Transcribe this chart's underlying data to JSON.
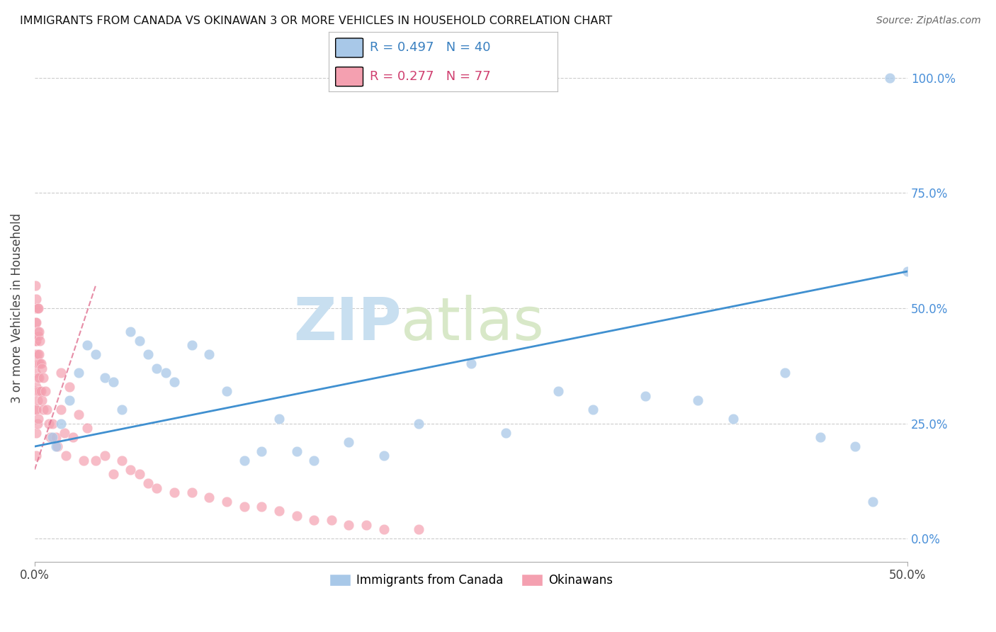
{
  "title": "IMMIGRANTS FROM CANADA VS OKINAWAN 3 OR MORE VEHICLES IN HOUSEHOLD CORRELATION CHART",
  "source": "Source: ZipAtlas.com",
  "ylabel": "3 or more Vehicles in Household",
  "ytick_values": [
    0,
    25,
    50,
    75,
    100
  ],
  "xlim": [
    0,
    50
  ],
  "ylim": [
    -5,
    105
  ],
  "legend_blue_r": "R = 0.497",
  "legend_blue_n": "N = 40",
  "legend_pink_r": "R = 0.277",
  "legend_pink_n": "N = 77",
  "blue_color": "#a8c8e8",
  "pink_color": "#f4a0b0",
  "blue_line_color": "#4090d0",
  "pink_line_color": "#e07090",
  "watermark_zip": "ZIP",
  "watermark_atlas": "atlas",
  "blue_scatter_x": [
    1.0,
    1.2,
    1.5,
    2.0,
    2.5,
    3.0,
    3.5,
    4.0,
    4.5,
    5.0,
    5.5,
    6.0,
    6.5,
    7.0,
    7.5,
    8.0,
    9.0,
    10.0,
    11.0,
    12.0,
    13.0,
    14.0,
    15.0,
    16.0,
    18.0,
    20.0,
    22.0,
    25.0,
    27.0,
    30.0,
    32.0,
    35.0,
    38.0,
    40.0,
    43.0,
    45.0,
    47.0,
    48.0,
    49.0,
    50.0
  ],
  "blue_scatter_y": [
    22,
    20,
    25,
    30,
    36,
    42,
    40,
    35,
    34,
    28,
    45,
    43,
    40,
    37,
    36,
    34,
    42,
    40,
    32,
    17,
    19,
    26,
    19,
    17,
    21,
    18,
    25,
    38,
    23,
    32,
    28,
    31,
    30,
    26,
    36,
    22,
    20,
    8,
    100,
    58
  ],
  "pink_scatter_x": [
    0.05,
    0.05,
    0.05,
    0.05,
    0.05,
    0.05,
    0.05,
    0.05,
    0.1,
    0.1,
    0.1,
    0.1,
    0.1,
    0.1,
    0.1,
    0.1,
    0.15,
    0.15,
    0.15,
    0.15,
    0.15,
    0.15,
    0.2,
    0.2,
    0.2,
    0.2,
    0.2,
    0.25,
    0.25,
    0.25,
    0.3,
    0.3,
    0.3,
    0.35,
    0.35,
    0.4,
    0.4,
    0.5,
    0.5,
    0.6,
    0.7,
    0.8,
    0.9,
    1.0,
    1.2,
    1.3,
    1.5,
    1.5,
    1.7,
    1.8,
    2.0,
    2.2,
    2.5,
    2.8,
    3.0,
    3.5,
    4.0,
    4.5,
    5.0,
    5.5,
    6.0,
    6.5,
    7.0,
    8.0,
    9.0,
    10.0,
    11.0,
    12.0,
    13.0,
    14.0,
    15.0,
    16.0,
    17.0,
    18.0,
    19.0,
    20.0,
    22.0
  ],
  "pink_scatter_y": [
    55,
    50,
    47,
    43,
    40,
    36,
    32,
    28,
    52,
    47,
    43,
    38,
    33,
    28,
    23,
    18,
    50,
    45,
    40,
    35,
    30,
    25,
    50,
    44,
    38,
    32,
    26,
    45,
    40,
    35,
    43,
    38,
    32,
    38,
    32,
    37,
    30,
    35,
    28,
    32,
    28,
    25,
    22,
    25,
    22,
    20,
    36,
    28,
    23,
    18,
    33,
    22,
    27,
    17,
    24,
    17,
    18,
    14,
    17,
    15,
    14,
    12,
    11,
    10,
    10,
    9,
    8,
    7,
    7,
    6,
    5,
    4,
    4,
    3,
    3,
    2,
    2
  ],
  "blue_trend_x": [
    0,
    50
  ],
  "blue_trend_y": [
    20,
    58
  ],
  "pink_trend_x": [
    0.0,
    3.5
  ],
  "pink_trend_y": [
    15,
    55
  ]
}
